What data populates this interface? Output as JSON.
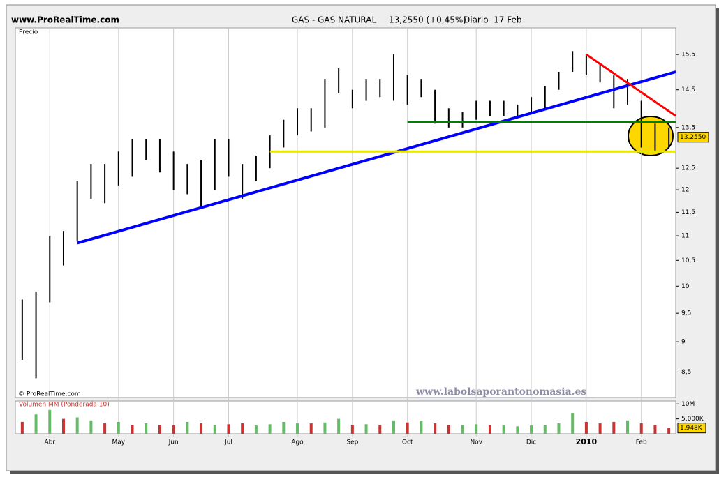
{
  "site": "www.ProRealTime.com",
  "chart_data": {
    "type": "ohlc",
    "title": "GAS - GAS NATURAL",
    "quote": "13,2550 (+0,45%)",
    "period": "Diario  17 Feb",
    "panel_label": "Precio",
    "copyright": "© ProRealTime.com",
    "watermark": "www.labolsaporantonomasia.es",
    "log_scale": true,
    "bar_color": "#000000",
    "categories": [
      null,
      null,
      "Abr",
      null,
      null,
      null,
      null,
      "May",
      null,
      null,
      null,
      "Jun",
      null,
      null,
      null,
      "Jul",
      null,
      null,
      null,
      null,
      "Ago",
      null,
      null,
      null,
      "Sep",
      null,
      null,
      null,
      "Oct",
      null,
      null,
      null,
      null,
      "Nov",
      null,
      null,
      null,
      "Dic",
      null,
      null,
      null,
      "2010",
      null,
      null,
      null,
      "Feb",
      null,
      null
    ],
    "high": [
      9.75,
      9.9,
      11.0,
      11.1,
      12.2,
      12.6,
      12.6,
      12.9,
      13.2,
      13.2,
      13.2,
      12.9,
      12.6,
      12.7,
      13.2,
      13.2,
      12.6,
      12.8,
      13.3,
      13.7,
      14.0,
      14.0,
      14.8,
      15.1,
      14.5,
      14.8,
      14.8,
      15.5,
      14.9,
      14.8,
      14.5,
      14.0,
      13.9,
      14.2,
      14.2,
      14.2,
      14.1,
      14.3,
      14.6,
      15.0,
      15.6,
      15.5,
      15.2,
      14.9,
      14.8,
      14.2,
      13.6,
      13.5
    ],
    "low": [
      8.7,
      8.4,
      9.7,
      10.4,
      10.9,
      11.8,
      11.7,
      12.1,
      12.3,
      12.7,
      12.4,
      12.0,
      11.9,
      11.6,
      12.0,
      12.3,
      11.8,
      12.2,
      12.5,
      13.0,
      13.3,
      13.4,
      13.5,
      14.4,
      14.0,
      14.2,
      14.3,
      14.2,
      14.1,
      14.3,
      13.6,
      13.5,
      13.5,
      13.7,
      13.8,
      13.8,
      13.8,
      13.9,
      14.0,
      14.5,
      15.0,
      14.9,
      14.7,
      14.0,
      14.1,
      13.0,
      12.9,
      13.0
    ],
    "ylim": [
      8.1,
      16.3
    ],
    "yticks": [
      {
        "value": 8.5,
        "label": "8,5"
      },
      9,
      {
        "value": 9.5,
        "label": "9,5"
      },
      10,
      {
        "value": 10.5,
        "label": "10,5"
      },
      11,
      {
        "value": 11.5,
        "label": "11,5"
      },
      12,
      {
        "value": 12.5,
        "label": "12,5"
      },
      {
        "value": 13.5,
        "label": "13,5"
      },
      {
        "value": 14.5,
        "label": "14,5"
      },
      {
        "value": 15.5,
        "label": "15,5"
      }
    ],
    "last_price": {
      "value": 13.255,
      "label": "13,2550"
    },
    "trendlines": [
      {
        "color": "#0000ff",
        "start": 4,
        "end": 47,
        "values": [
          10.85,
          15.0
        ]
      },
      {
        "color": "#ff0000",
        "start": 41,
        "end": 47,
        "values": [
          15.5,
          13.8
        ]
      },
      {
        "color": "#008000",
        "start": 28,
        "end": 47,
        "values": [
          13.65,
          13.65
        ]
      },
      {
        "color": "#e6e600",
        "start": 18,
        "end": 47,
        "values": [
          12.9,
          12.9
        ]
      }
    ],
    "volume": {
      "label": "Volumen MM (Ponderada 10)",
      "values": [
        4000,
        6500,
        8000,
        5000,
        5500,
        4500,
        3500,
        4000,
        3000,
        3500,
        3000,
        2800,
        4000,
        3500,
        3000,
        3200,
        3500,
        2800,
        3200,
        4000,
        3500,
        3500,
        3800,
        5000,
        3000,
        3200,
        3000,
        4500,
        3800,
        4200,
        3500,
        3000,
        3000,
        3200,
        2800,
        3000,
        2500,
        2800,
        3000,
        3500,
        7000,
        4000,
        3500,
        4000,
        4500,
        3500,
        3000,
        1948
      ],
      "colors": [
        "#cc3333",
        "#66bb66",
        "#66bb66",
        "#cc3333",
        "#66bb66",
        "#66bb66",
        "#cc3333",
        "#66bb66",
        "#cc3333",
        "#66bb66",
        "#cc3333",
        "#cc3333",
        "#66bb66",
        "#cc3333",
        "#66bb66",
        "#cc3333",
        "#cc3333",
        "#66bb66",
        "#66bb66",
        "#66bb66",
        "#66bb66",
        "#cc3333",
        "#66bb66",
        "#66bb66",
        "#cc3333",
        "#66bb66",
        "#cc3333",
        "#66bb66",
        "#cc3333",
        "#66bb66",
        "#cc3333",
        "#cc3333",
        "#66bb66",
        "#66bb66",
        "#cc3333",
        "#66bb66",
        "#66bb66",
        "#66bb66",
        "#66bb66",
        "#66bb66",
        "#66bb66",
        "#cc3333",
        "#cc3333",
        "#cc3333",
        "#66bb66",
        "#cc3333",
        "#cc3333",
        "#cc3333"
      ],
      "ylim": [
        0,
        11000
      ],
      "yticks": [
        {
          "value": 5000,
          "label": "5.000K"
        },
        {
          "value": 10000,
          "label": "10M"
        }
      ],
      "last": {
        "value": 1948,
        "label": "1.948K"
      }
    }
  }
}
